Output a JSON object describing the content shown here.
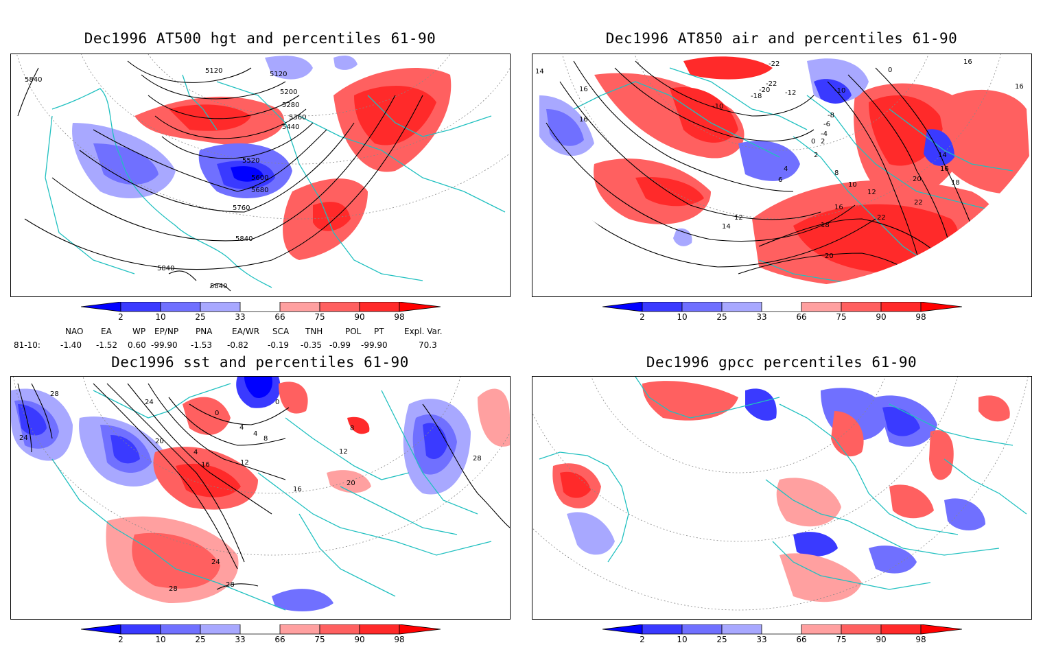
{
  "panels": [
    {
      "id": "hgt500",
      "title": "Dec1996 AT500 hgt and percentiles 61-90",
      "contour_labels": [
        "5120",
        "5120",
        "5200",
        "5280",
        "5360",
        "5440",
        "5520",
        "5600",
        "5680",
        "5760",
        "5840",
        "5840",
        "5840",
        "5840"
      ]
    },
    {
      "id": "air850",
      "title": "Dec1996 AT850 air and percentiles 61-90",
      "contour_labels": [
        "-22",
        "-22",
        "-20",
        "-18",
        "-12",
        "-10",
        "-10",
        "-8",
        "-6",
        "-4",
        "0",
        "0",
        "2",
        "2",
        "4",
        "6",
        "8",
        "10",
        "12",
        "12",
        "14",
        "14",
        "14",
        "16",
        "16",
        "16",
        "16",
        "16",
        "16",
        "18",
        "18",
        "20",
        "20",
        "22",
        "22"
      ]
    },
    {
      "id": "sst",
      "title": "Dec1996 sst and percentiles 61-90",
      "contour_labels": [
        "28",
        "24",
        "24",
        "20",
        "16",
        "12",
        "12",
        "8",
        "8",
        "4",
        "4",
        "4",
        "0",
        "0",
        "16",
        "20",
        "24",
        "28",
        "28",
        "28"
      ]
    },
    {
      "id": "gpcc",
      "title": "Dec1996 gpcc percentiles 61-90",
      "contour_labels": []
    }
  ],
  "colorbar": {
    "ticks": [
      "2",
      "10",
      "25",
      "33",
      "66",
      "75",
      "90",
      "98"
    ],
    "colors": {
      "below2": "#0000ff",
      "c2_10": "#3a3aff",
      "c10_25": "#7070ff",
      "c25_33": "#a8a8ff",
      "c66_75": "#ffa0a0",
      "c75_90": "#ff6060",
      "c90_98": "#ff2a2a",
      "above98": "#ff0000"
    }
  },
  "teleconnections": {
    "header": [
      "NAO",
      "EA",
      "WP",
      "EP/NP",
      "PNA",
      "EA/WR",
      "SCA",
      "TNH",
      "POL",
      "PT",
      "Expl. Var."
    ],
    "row_label": "81-10:",
    "values": [
      "-1.40",
      "-1.52",
      "0.60",
      "-99.90",
      "-1.53",
      "-0.82",
      "-0.19",
      "-0.35",
      "-0.99",
      "-99.90",
      "70.3"
    ]
  },
  "map_colors": {
    "coast": "#20c0c0",
    "contour": "#000000",
    "grid": "#888888"
  }
}
